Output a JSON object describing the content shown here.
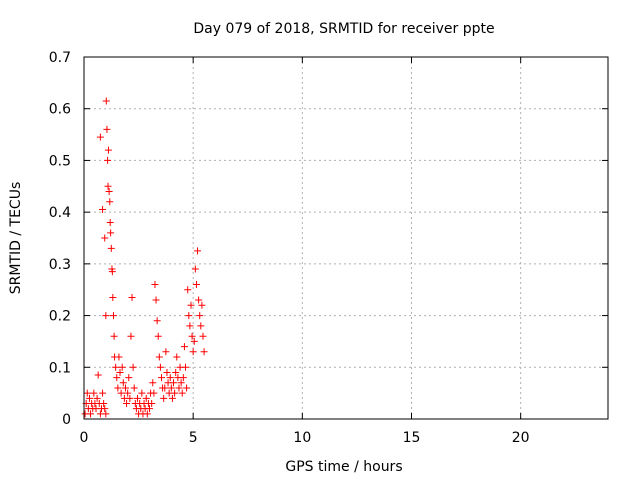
{
  "chart_data": {
    "type": "scatter",
    "title": "Day 079 of 2018, SRMTID for receiver ppte",
    "xlabel": "GPS time / hours",
    "ylabel": "SRMTID / TECUs",
    "xlim": [
      0,
      24
    ],
    "ylim": [
      0,
      0.7
    ],
    "grid": true,
    "x_ticks": [
      0,
      5,
      10,
      15,
      20
    ],
    "y_ticks": [
      0,
      0.1,
      0.2,
      0.3,
      0.4,
      0.5,
      0.6,
      0.7
    ],
    "x_tick_labels": [
      "0",
      "5",
      "10",
      "15",
      "20"
    ],
    "y_tick_labels": [
      "0",
      "0.1",
      "0.2",
      "0.3",
      "0.4",
      "0.5",
      "0.6",
      "0.7"
    ],
    "marker": "plus",
    "series": [
      {
        "name": "SRMTID",
        "color": "#ff0000",
        "points": [
          [
            0.05,
            0.01
          ],
          [
            0.1,
            0.03
          ],
          [
            0.15,
            0.05
          ],
          [
            0.2,
            0.02
          ],
          [
            0.25,
            0.04
          ],
          [
            0.3,
            0.01
          ],
          [
            0.35,
            0.03
          ],
          [
            0.4,
            0.02
          ],
          [
            0.45,
            0.05
          ],
          [
            0.5,
            0.03
          ],
          [
            0.55,
            0.02
          ],
          [
            0.6,
            0.04
          ],
          [
            0.65,
            0.085
          ],
          [
            0.7,
            0.03
          ],
          [
            0.75,
            0.01
          ],
          [
            0.8,
            0.02
          ],
          [
            0.85,
            0.05
          ],
          [
            0.9,
            0.03
          ],
          [
            0.95,
            0.02
          ],
          [
            1.0,
            0.01
          ],
          [
            0.75,
            0.545
          ],
          [
            0.85,
            0.405
          ],
          [
            0.95,
            0.35
          ],
          [
            1.0,
            0.2
          ],
          [
            1.02,
            0.615
          ],
          [
            1.05,
            0.56
          ],
          [
            1.08,
            0.5
          ],
          [
            1.1,
            0.45
          ],
          [
            1.12,
            0.52
          ],
          [
            1.15,
            0.44
          ],
          [
            1.18,
            0.42
          ],
          [
            1.2,
            0.38
          ],
          [
            1.22,
            0.36
          ],
          [
            1.25,
            0.33
          ],
          [
            1.28,
            0.29
          ],
          [
            1.3,
            0.285
          ],
          [
            1.32,
            0.235
          ],
          [
            1.35,
            0.2
          ],
          [
            1.38,
            0.16
          ],
          [
            1.4,
            0.12
          ],
          [
            1.45,
            0.1
          ],
          [
            1.5,
            0.08
          ],
          [
            1.55,
            0.06
          ],
          [
            1.6,
            0.12
          ],
          [
            1.65,
            0.09
          ],
          [
            1.7,
            0.05
          ],
          [
            1.75,
            0.1
          ],
          [
            1.8,
            0.07
          ],
          [
            1.85,
            0.04
          ],
          [
            1.9,
            0.06
          ],
          [
            1.95,
            0.03
          ],
          [
            2.0,
            0.05
          ],
          [
            2.05,
            0.08
          ],
          [
            2.1,
            0.04
          ],
          [
            2.15,
            0.16
          ],
          [
            2.2,
            0.235
          ],
          [
            2.25,
            0.1
          ],
          [
            2.3,
            0.06
          ],
          [
            2.35,
            0.03
          ],
          [
            2.4,
            0.02
          ],
          [
            2.45,
            0.04
          ],
          [
            2.5,
            0.01
          ],
          [
            2.55,
            0.03
          ],
          [
            2.6,
            0.02
          ],
          [
            2.65,
            0.05
          ],
          [
            2.7,
            0.01
          ],
          [
            2.75,
            0.03
          ],
          [
            2.8,
            0.02
          ],
          [
            2.85,
            0.04
          ],
          [
            2.9,
            0.01
          ],
          [
            2.95,
            0.03
          ],
          [
            3.0,
            0.02
          ],
          [
            3.05,
            0.05
          ],
          [
            3.1,
            0.03
          ],
          [
            3.15,
            0.07
          ],
          [
            3.2,
            0.05
          ],
          [
            3.25,
            0.26
          ],
          [
            3.3,
            0.23
          ],
          [
            3.35,
            0.19
          ],
          [
            3.4,
            0.16
          ],
          [
            3.45,
            0.12
          ],
          [
            3.5,
            0.1
          ],
          [
            3.55,
            0.08
          ],
          [
            3.6,
            0.06
          ],
          [
            3.65,
            0.04
          ],
          [
            3.7,
            0.06
          ],
          [
            3.75,
            0.13
          ],
          [
            3.8,
            0.09
          ],
          [
            3.85,
            0.07
          ],
          [
            3.9,
            0.05
          ],
          [
            3.95,
            0.08
          ],
          [
            4.0,
            0.06
          ],
          [
            4.05,
            0.04
          ],
          [
            4.1,
            0.07
          ],
          [
            4.15,
            0.05
          ],
          [
            4.2,
            0.09
          ],
          [
            4.25,
            0.12
          ],
          [
            4.3,
            0.08
          ],
          [
            4.35,
            0.06
          ],
          [
            4.4,
            0.1
          ],
          [
            4.45,
            0.07
          ],
          [
            4.5,
            0.05
          ],
          [
            4.55,
            0.08
          ],
          [
            4.6,
            0.14
          ],
          [
            4.65,
            0.1
          ],
          [
            4.7,
            0.06
          ],
          [
            4.75,
            0.25
          ],
          [
            4.8,
            0.2
          ],
          [
            4.85,
            0.18
          ],
          [
            4.9,
            0.22
          ],
          [
            4.95,
            0.16
          ],
          [
            5.0,
            0.13
          ],
          [
            5.05,
            0.15
          ],
          [
            5.1,
            0.29
          ],
          [
            5.15,
            0.26
          ],
          [
            5.2,
            0.325
          ],
          [
            5.25,
            0.23
          ],
          [
            5.3,
            0.2
          ],
          [
            5.35,
            0.18
          ],
          [
            5.4,
            0.22
          ],
          [
            5.45,
            0.16
          ],
          [
            5.5,
            0.13
          ]
        ]
      }
    ]
  }
}
